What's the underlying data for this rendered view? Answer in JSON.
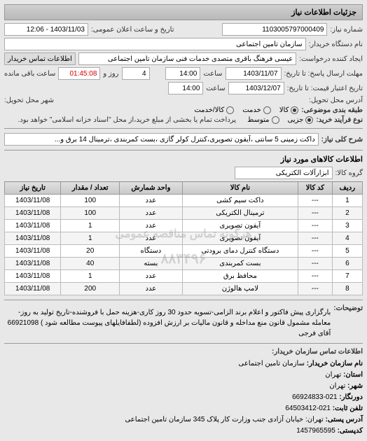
{
  "headers": {
    "details": "جزئیات اطلاعات نیاز"
  },
  "top": {
    "req_no_label": "شماره نیاز:",
    "req_no": "1103005797000409",
    "announce_label": "تاریخ و ساعت اعلان عمومی:",
    "announce_val": "1403/11/03 - 12:06",
    "buyer_org_label": "نام دستگاه خریدار:",
    "buyer_org": "سازمان تامین اجتماعی",
    "requester_label": "ایجاد کننده درخواست:",
    "requester": "عیسی فرهنگ باقری متصدی خدمات فنی سازمان تامین اجتماعی",
    "buyer_contact_btn": "اطلاعات تماس خریدار",
    "deadline_send_label": "مهلت ارسال پاسخ: تا تاریخ:",
    "deadline_send_date": "1403/11/07",
    "time_label": "ساعت",
    "deadline_send_time": "14:00",
    "days_label": "روز و",
    "days_val": "4",
    "remain_time": "01:45:08",
    "remain_label": "ساعت باقی مانده",
    "validity_label": "تاریخ اعتبار قیمت: تا تاریخ:",
    "validity_date": "1403/12/07",
    "validity_time": "14:00",
    "delivery_addr_label": "آدرس محل تحویل:",
    "delivery_city_label": "شهر محل تحویل:",
    "budget_label": "طبقه بندی موضوعی:",
    "budget_opts": {
      "goods": "کالا",
      "service": "خدمت",
      "mixed": "کالا/خدمت"
    },
    "process_label": "نوع فرآیند خرید:",
    "process_opts": {
      "low": "جزیی",
      "med": "متوسط"
    },
    "process_note": "پرداخت تمام یا بخشی از مبلغ خرید،از محل \"اسناد خزانه اسلامی\" خواهد بود."
  },
  "desc": {
    "label": "شرح کلی نیاز:",
    "text": "داکت زمینی 5 سانتی ،آیفون تصویری،کنترل کولر گازی ،بست کمربندی ،ترمینال 14 برق و..."
  },
  "goods": {
    "title": "اطلاعات کالاهای مورد نیاز",
    "group_label": "گروه کالا:",
    "group_val": "ابزارآلات الکتریکی",
    "columns": [
      "ردیف",
      "کد کالا",
      "نام کالا",
      "واحد شمارش",
      "تعداد / مقدار",
      "تاریخ نیاز"
    ],
    "rows": [
      [
        "1",
        "---",
        "داکت سیم کشی",
        "عدد",
        "100",
        "1403/11/08"
      ],
      [
        "2",
        "---",
        "ترمینال الکتریکی",
        "عدد",
        "100",
        "1403/11/08"
      ],
      [
        "3",
        "---",
        "آیفون تصویری",
        "عدد",
        "1",
        "1403/11/08"
      ],
      [
        "4",
        "---",
        "آیفون تصویری",
        "عدد",
        "1",
        "1403/11/08"
      ],
      [
        "5",
        "---",
        "دستگاه کنترل دمای برودتی",
        "دستگاه",
        "20",
        "1403/11/08"
      ],
      [
        "6",
        "---",
        "بست کمربندی",
        "بسته",
        "40",
        "1403/11/08"
      ],
      [
        "7",
        "---",
        "محافظ برق",
        "عدد",
        "1",
        "1403/11/08"
      ],
      [
        "8",
        "---",
        "لامپ هالوژن",
        "عدد",
        "200",
        "1403/11/08"
      ]
    ],
    "watermark1": "هرگونه تماس مناقصه عمومی",
    "watermark2": "۸۸۳۴۹۶"
  },
  "notes": {
    "label": "توضیحات:",
    "text": "بارگزاری پیش فاکتور و اعلام برند الزامی-تسویه حدود 30 روز کاری-هزینه حمل با فروشنده-تاریخ تولید به روز-معامله مشمول قانون منع مداخله و قانون مالیات بر ارزش افزوده (لطفافایلهای پیوست مطالعه شود ) 66921098 آقای فرجی"
  },
  "contact": {
    "title": "اطلاعات تماس سازمان خریدار:",
    "org_label": "نام سازمان خریدار:",
    "org": "سازمان تامین اجتماعی",
    "province_label": "استان:",
    "province": "تهران",
    "city_label": "شهر:",
    "city": "تهران",
    "phone_label": "دورنگار:",
    "phone": "021-66924833",
    "fax_label": "تلفن ثابت:",
    "fax": "021-64503412",
    "postal_label": "آدرس پستی:",
    "postal": "تهران: خیابان آزادی جنب وزارت کار پلاک 345 سازمان تامین اجتماعی",
    "zip_label": "کدپستی:",
    "zip": "1457965595"
  }
}
